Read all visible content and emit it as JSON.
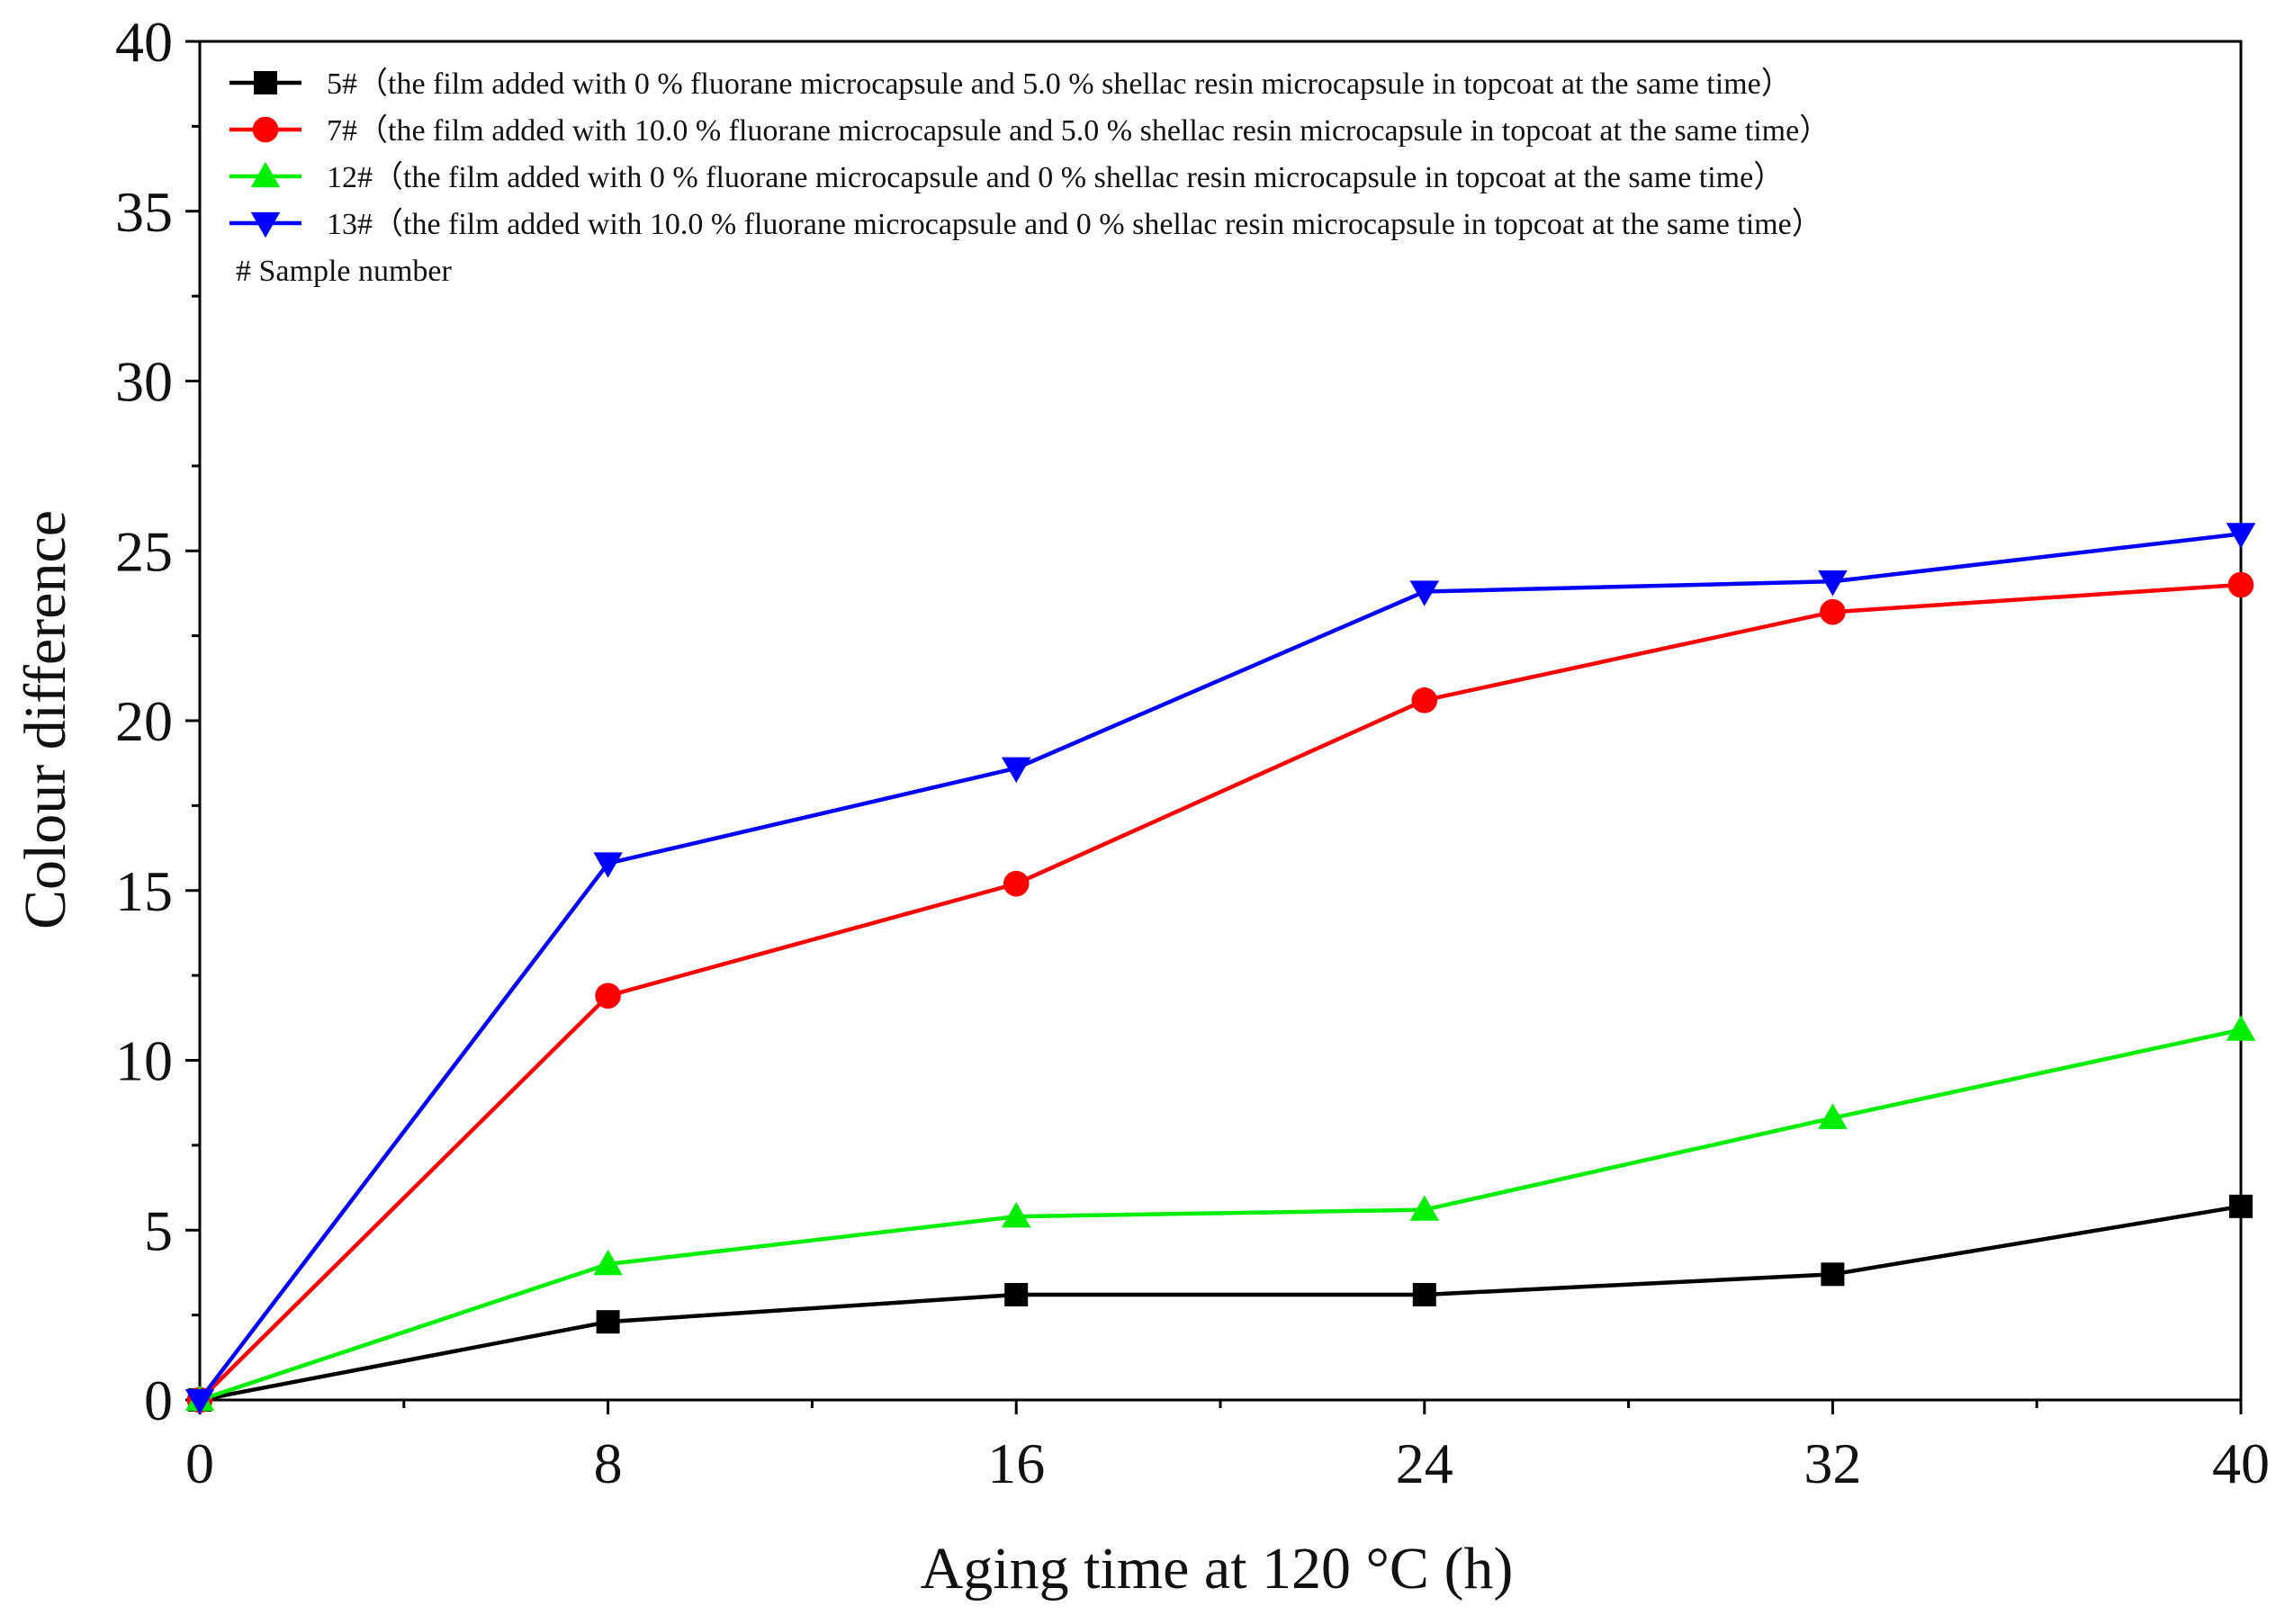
{
  "chart_data": {
    "type": "line",
    "title": "",
    "xlabel": "Aging time at 120 °C (h)",
    "ylabel": "Colour difference",
    "xlim": [
      0,
      40
    ],
    "ylim": [
      0,
      40
    ],
    "xticks": [
      "0",
      "8",
      "16",
      "24",
      "32",
      "40"
    ],
    "yticks": [
      "0",
      "5",
      "10",
      "15",
      "20",
      "25",
      "30",
      "35",
      "40"
    ],
    "x": [
      0,
      8,
      16,
      24,
      32,
      40
    ],
    "grid": false,
    "legend_position": "top-left",
    "series": [
      {
        "name": "5#（the film added with 0 % fluorane microcapsule and 5.0 % shellac resin microcapsule in topcoat at the same time）",
        "color": "#000000",
        "marker": "square",
        "values": [
          0,
          2.3,
          3.1,
          3.1,
          3.7,
          5.7
        ]
      },
      {
        "name": "7#（the film added with 10.0 % fluorane microcapsule and 5.0 % shellac resin microcapsule in topcoat at the same time）",
        "color": "#ff0000",
        "marker": "circle",
        "values": [
          0,
          11.9,
          15.2,
          20.6,
          23.2,
          24.0
        ]
      },
      {
        "name": "12#（the film added with 0 % fluorane microcapsule and 0 % shellac resin microcapsule in topcoat at the same time）",
        "color": "#00ee00",
        "marker": "triangle-up",
        "values": [
          0,
          4.0,
          5.4,
          5.6,
          8.3,
          10.9
        ]
      },
      {
        "name": "13#（the film added with 10.0 % fluorane microcapsule and 0 % shellac resin microcapsule in topcoat at the same time）",
        "color": "#0000ff",
        "marker": "triangle-down",
        "values": [
          0,
          15.8,
          18.6,
          23.8,
          24.1,
          25.5
        ]
      }
    ],
    "legend_note": "# Sample number"
  }
}
